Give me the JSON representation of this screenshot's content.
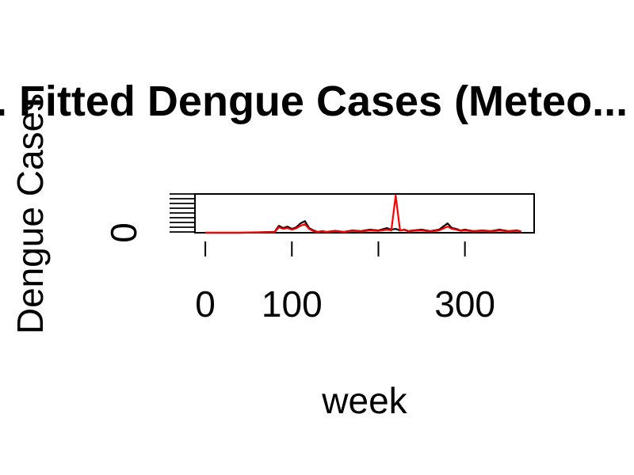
{
  "chart_data": {
    "type": "line",
    "title": "... Fitted Dengue Cases (Meteo...",
    "xlabel": "week",
    "ylabel": "Dengue Cases",
    "xlim": [
      -12,
      380
    ],
    "ylim": [
      0,
      250
    ],
    "x_ticks": [
      0,
      100,
      200,
      300
    ],
    "x_tick_labels": [
      "0",
      "100",
      "",
      "300"
    ],
    "y_tick_labels": [
      "0"
    ],
    "grid": false,
    "legend": "none",
    "series": [
      {
        "color": "#000000",
        "x": [
          0,
          40,
          80,
          85,
          90,
          95,
          100,
          105,
          110,
          115,
          120,
          125,
          130,
          135,
          140,
          150,
          160,
          170,
          180,
          190,
          200,
          210,
          215,
          220,
          225,
          230,
          235,
          240,
          250,
          260,
          270,
          280,
          285,
          290,
          295,
          300,
          305,
          310,
          320,
          330,
          340,
          350,
          360,
          365
        ],
        "y": [
          0,
          0,
          5,
          45,
          30,
          40,
          25,
          35,
          60,
          75,
          30,
          15,
          5,
          10,
          5,
          12,
          5,
          15,
          10,
          20,
          15,
          30,
          20,
          25,
          15,
          20,
          10,
          15,
          20,
          10,
          20,
          60,
          30,
          25,
          15,
          20,
          15,
          10,
          15,
          10,
          20,
          10,
          15,
          8
        ]
      },
      {
        "color": "#ff0000",
        "x": [
          0,
          40,
          80,
          85,
          90,
          95,
          100,
          105,
          110,
          115,
          120,
          125,
          130,
          135,
          140,
          150,
          160,
          170,
          180,
          190,
          200,
          210,
          215,
          220,
          225,
          230,
          235,
          240,
          250,
          260,
          270,
          280,
          285,
          290,
          295,
          300,
          305,
          310,
          320,
          330,
          340,
          350,
          360,
          365
        ],
        "y": [
          0,
          0,
          3,
          35,
          25,
          30,
          20,
          28,
          45,
          55,
          25,
          10,
          4,
          8,
          4,
          10,
          4,
          12,
          8,
          15,
          12,
          20,
          15,
          240,
          15,
          18,
          8,
          12,
          15,
          8,
          15,
          40,
          25,
          20,
          12,
          15,
          12,
          8,
          12,
          8,
          15,
          8,
          12,
          6
        ]
      }
    ]
  }
}
